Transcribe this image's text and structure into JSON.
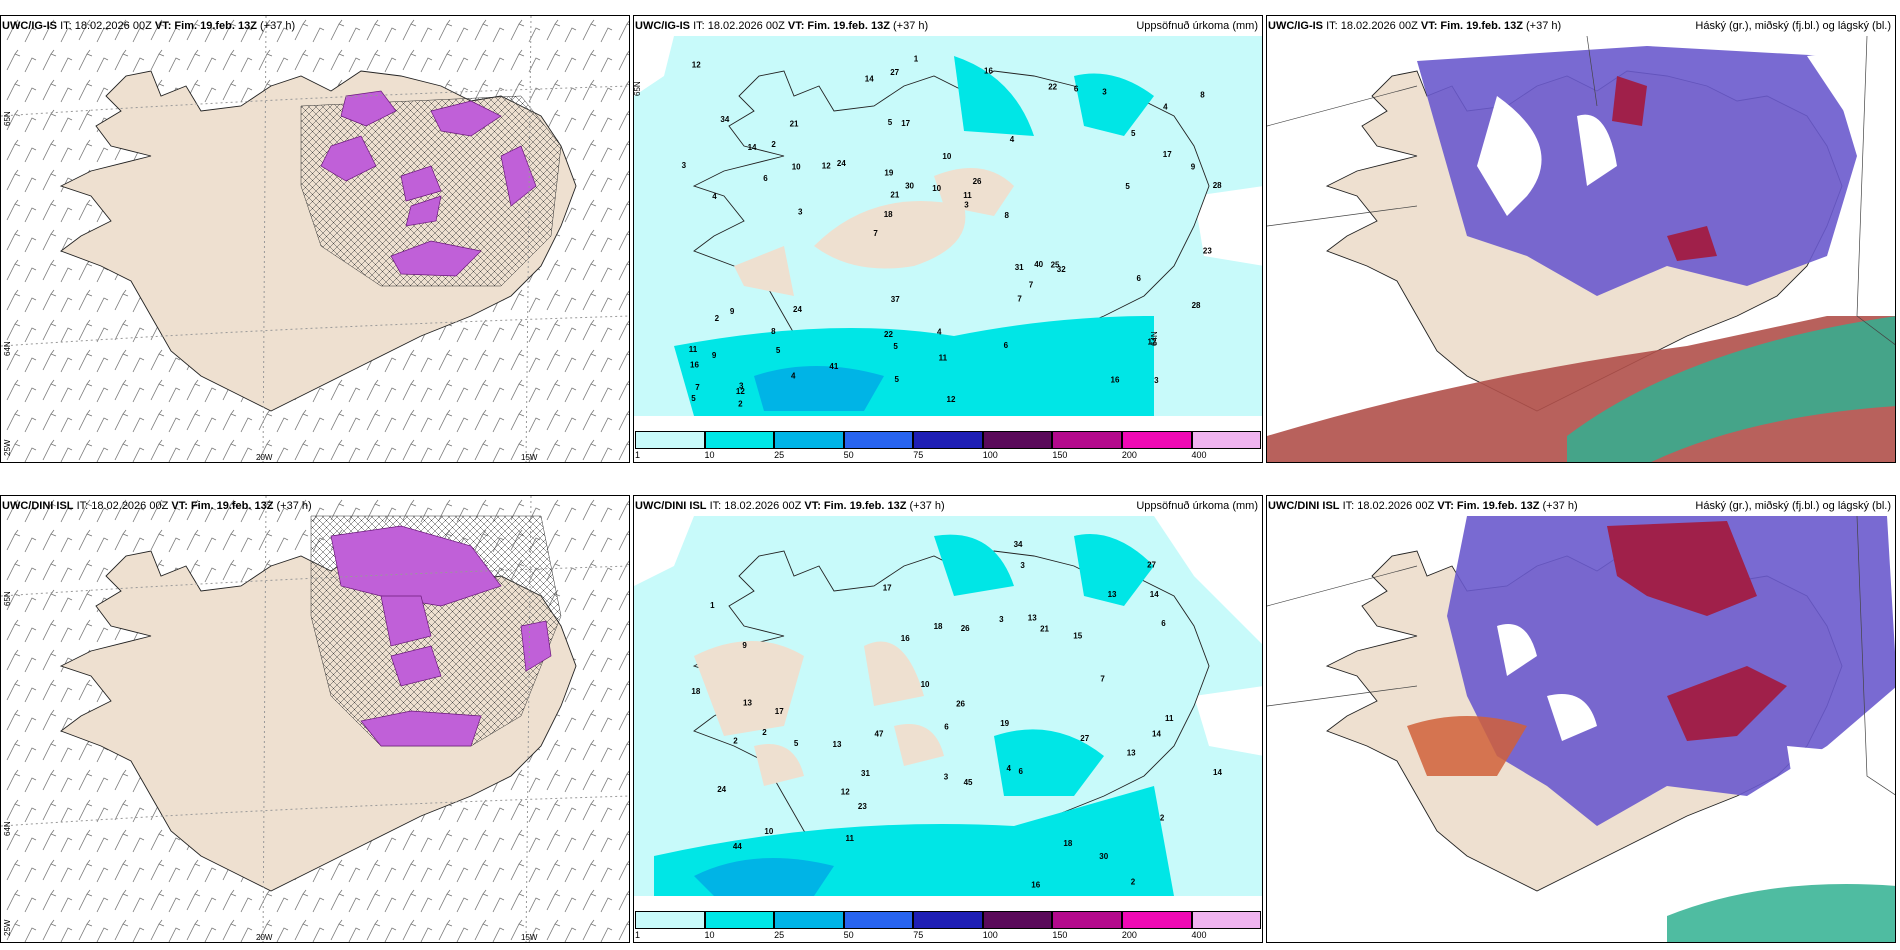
{
  "panels": [
    {
      "model": "UWC/IG-IS",
      "it": "IT: 18.02.2026 00Z",
      "vt_label": "VT:",
      "vt": "Fim. 19.feb. 13Z",
      "lead": "(+37 h)",
      "right_title": "",
      "lat_labels": [
        "65N",
        "64N",
        "25W"
      ],
      "lon_labels": [
        "20W",
        "15W"
      ]
    },
    {
      "model": "UWC/IG-IS",
      "it": "IT: 18.02.2026 00Z",
      "vt_label": "VT:",
      "vt": "Fim. 19.feb. 13Z",
      "lead": "(+37 h)",
      "right_title": "Uppsöfnuð úrkoma (mm)",
      "lat_labels": [
        "65N",
        "64N"
      ],
      "lon_labels": []
    },
    {
      "model": "UWC/IG-IS",
      "it": "IT: 18.02.2026 00Z",
      "vt_label": "VT:",
      "vt": "Fim. 19.feb. 13Z",
      "lead": "(+37 h)",
      "right_title": "Háský (gr.), miðský (fj.bl.) og lágský (bl.)",
      "lat_labels": [],
      "lon_labels": []
    },
    {
      "model": "UWC/DINI ISL",
      "it": "IT: 18.02.2026 00Z",
      "vt_label": "VT:",
      "vt": "Fim. 19.feb. 13Z",
      "lead": "(+37 h)",
      "right_title": "",
      "lat_labels": [
        "65N",
        "64N",
        "25W"
      ],
      "lon_labels": [
        "20W",
        "15W"
      ]
    },
    {
      "model": "UWC/DINI ISL",
      "it": "IT: 18.02.2026 00Z",
      "vt_label": "VT:",
      "vt": "Fim. 19.feb. 13Z",
      "lead": "(+37 h)",
      "right_title": "Uppsöfnuð úrkoma (mm)",
      "lat_labels": [],
      "lon_labels": []
    },
    {
      "model": "UWC/DINI ISL",
      "it": "IT: 18.02.2026 00Z",
      "vt_label": "VT:",
      "vt": "Fim. 19.feb. 13Z",
      "lead": "(+37 h)",
      "right_title": "Háský (gr.), miðský (fj.bl.) og lágský (bl.)",
      "lat_labels": [],
      "lon_labels": []
    }
  ],
  "colorbar": {
    "colors": [
      "#c8fafa",
      "#00e6e6",
      "#00b4e6",
      "#2864f0",
      "#1e1eb4",
      "#5a0a5a",
      "#b40a8c",
      "#f00ab4",
      "#f0b4f0"
    ],
    "ticks": [
      "1",
      "10",
      "25",
      "50",
      "75",
      "100",
      "150",
      "200",
      "400"
    ]
  },
  "precip_values_top": [
    "3",
    "4",
    "4",
    "7",
    "4",
    "3",
    "5",
    "10",
    "9",
    "24",
    "16",
    "5",
    "17",
    "26",
    "32",
    "34",
    "27",
    "28",
    "31",
    "17",
    "18",
    "22",
    "21",
    "21",
    "22",
    "24",
    "16",
    "12",
    "25",
    "12",
    "12",
    "6",
    "7",
    "4",
    "9",
    "11",
    "7",
    "5",
    "3",
    "2",
    "5",
    "8",
    "7",
    "6",
    "8",
    "2",
    "5",
    "4",
    "3",
    "1",
    "3",
    "3",
    "2",
    "6",
    "12",
    "16",
    "14",
    "30",
    "28",
    "37",
    "41",
    "40",
    "10",
    "11",
    "12",
    "14",
    "23",
    "19",
    "11",
    "10",
    "9",
    "8",
    "6",
    "5",
    "5"
  ],
  "precip_values_bottom": [
    "2",
    "2",
    "4",
    "1",
    "2",
    "9",
    "10",
    "13",
    "15",
    "18",
    "21",
    "30",
    "23",
    "17",
    "19",
    "24",
    "27",
    "26",
    "18",
    "44",
    "27",
    "26",
    "7",
    "14",
    "11",
    "13",
    "5",
    "6",
    "10",
    "14",
    "6",
    "2",
    "12",
    "13",
    "16",
    "13",
    "14",
    "18",
    "13",
    "16",
    "31",
    "45",
    "11",
    "34",
    "47",
    "17",
    "6",
    "3",
    "3",
    "3"
  ]
}
